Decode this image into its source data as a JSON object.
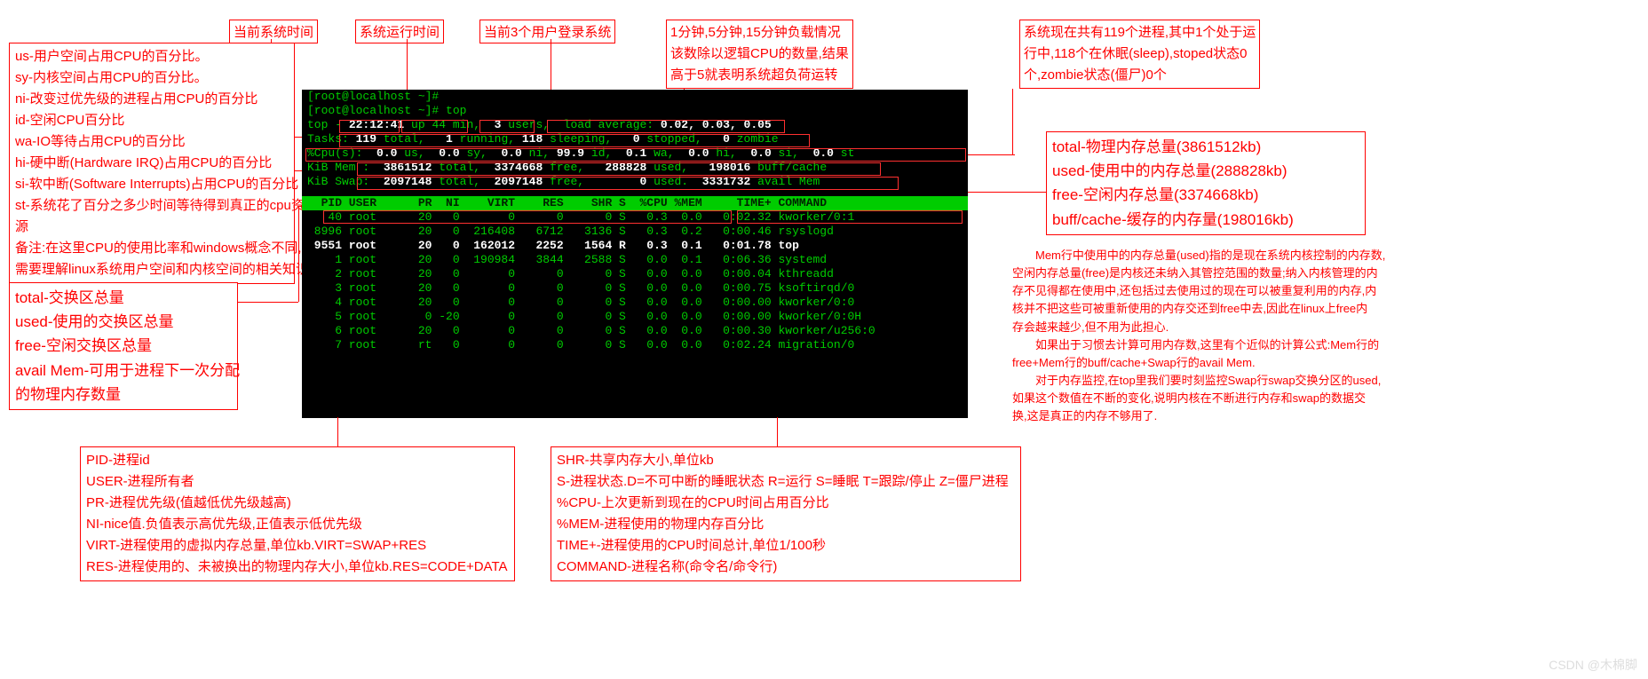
{
  "colors": {
    "annotation": "#ff0000",
    "terminal_bg": "#000000",
    "term_green": "#00cc00",
    "term_bgreen": "#55ff55",
    "term_white": "#ffffff",
    "term_cyan": "#00ffff",
    "term_yellow": "#cccc00",
    "header_bg": "#00cc00",
    "header_fg": "#002200"
  },
  "top_labels": {
    "time": "当前系统时间",
    "uptime": "系统运行时间",
    "users": "当前3个用户登录系统",
    "load": "1分钟,5分钟,15分钟负载情况\n该数除以逻辑CPU的数量,结果\n高于5就表明系统超负荷运转",
    "tasks": "系统现在共有119个进程,其中1个处于运\n行中,118个在休眠(sleep),stoped状态0\n个,zombie状态(僵尸)0个"
  },
  "cpu_notes": "us-用户空间占用CPU的百分比。\nsy-内核空间占用CPU的百分比。\nni-改变过优先级的进程占用CPU的百分比\nid-空闲CPU百分比\nwa-IO等待占用CPU的百分比\nhi-硬中断(Hardware IRQ)占用CPU的百分比\nsi-软中断(Software Interrupts)占用CPU的百分比\nst-系统花了百分之多少时间等待得到真正的cpu资\n源\n备注:在这里CPU的使用比率和windows概念不同,\n需要理解linux系统用户空间和内核空间的相关知识",
  "swap_notes": "total-交换区总量\nused-使用的交换区总量\nfree-空闲交换区总量\navail Mem-可用于进程下一次分配\n的物理内存数量",
  "mem_notes": "total-物理内存总量(3861512kb)\nused-使用中的内存总量(288828kb)\nfree-空闲内存总量(3374668kb)\nbuff/cache-缓存的内存量(198016kb)",
  "col_notes_left": "PID-进程id\nUSER-进程所有者\nPR-进程优先级(值越低优先级越高)\nNI-nice值.负值表示高优先级,正值表示低优先级\nVIRT-进程使用的虚拟内存总量,单位kb.VIRT=SWAP+RES\nRES-进程使用的、未被换出的物理内存大小,单位kb.RES=CODE+DATA",
  "col_notes_right": "SHR-共享内存大小,单位kb\nS-进程状态.D=不可中断的睡眠状态 R=运行 S=睡眠 T=跟踪/停止 Z=僵尸进程\n%CPU-上次更新到现在的CPU时间占用百分比\n%MEM-进程使用的物理内存百分比\nTIME+-进程使用的CPU时间总计,单位1/100秒\nCOMMAND-进程名称(命令名/命令行)",
  "mem_para": "　　Mem行中使用中的内存总量(used)指的是现在系统内核控制的内存数,\n空闲内存总量(free)是内核还未纳入其管控范围的数量;纳入内核管理的内\n存不见得都在使用中,还包括过去使用过的现在可以被重复利用的内存,内\n核并不把这些可被重新使用的内存交还到free中去,因此在linux上free内\n存会越来越少,但不用为此担心.\n　　如果出于习惯去计算可用内存数,这里有个近似的计算公式:Mem行的\nfree+Mem行的buff/cache+Swap行的avail Mem.\n　　对于内存监控,在top里我们要时刻监控Swap行swap交换分区的used,\n如果这个数值在不断的变化,说明内核在不断进行内存和swap的数据交\n换,这是真正的内存不够用了.",
  "terminal": {
    "prompt1": "[root@localhost ~]#",
    "prompt2": "[root@localhost ~]# top",
    "summary": "top - 22:12:41 up 44 min,  3 users,  load average: 0.02, 0.03, 0.05",
    "tasks": "Tasks: 119 total,   1 running, 118 sleeping,   0 stopped,   0 zombie",
    "cpu": "%Cpu(s):  0.0 us,  0.0 sy,  0.0 ni, 99.9 id,  0.1 wa,  0.0 hi,  0.0 si,  0.0 st",
    "mem": "KiB Mem :  3861512 total,  3374668 free,   288828 used,   198016 buff/cache",
    "swap": "KiB Swap:  2097148 total,  2097148 free,        0 used.  3331732 avail Mem",
    "header": "  PID USER      PR  NI    VIRT    RES    SHR S  %CPU %MEM     TIME+ COMMAND      ",
    "rows": [
      "   40 root      20   0       0      0      0 S   0.3  0.0   0:02.32 kworker/0:1",
      " 8996 root      20   0  216408   6712   3136 S   0.3  0.2   0:00.46 rsyslogd",
      " 9551 root      20   0  162012   2252   1564 R   0.3  0.1   0:01.78 top",
      "    1 root      20   0  190984   3844   2588 S   0.0  0.1   0:06.36 systemd",
      "    2 root      20   0       0      0      0 S   0.0  0.0   0:00.04 kthreadd",
      "    3 root      20   0       0      0      0 S   0.0  0.0   0:00.75 ksoftirqd/0",
      "    4 root      20   0       0      0      0 S   0.0  0.0   0:00.00 kworker/0:0",
      "    5 root       0 -20       0      0      0 S   0.0  0.0   0:00.00 kworker/0:0H",
      "    6 root      20   0       0      0      0 S   0.0  0.0   0:00.30 kworker/u256:0",
      "    7 root      rt   0       0      0      0 S   0.0  0.0   0:02.24 migration/0"
    ]
  },
  "watermark": "CSDN @木棉脚"
}
